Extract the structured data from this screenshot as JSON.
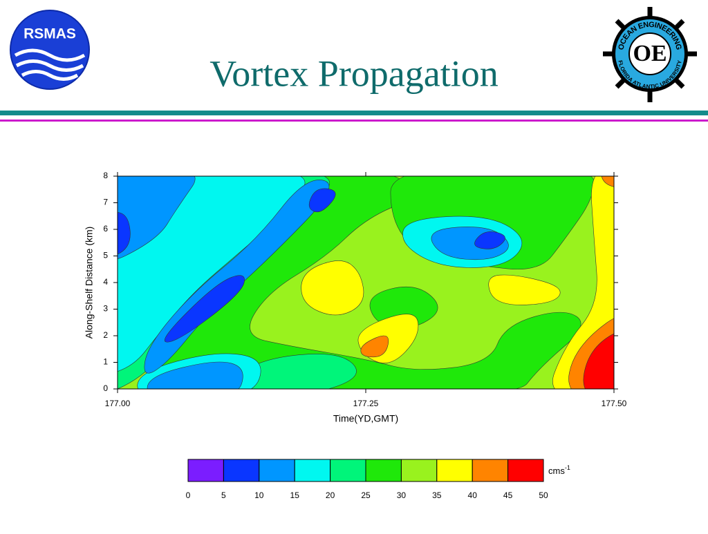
{
  "header": {
    "title": "Vortex Propagation",
    "left_logo": "RSMAS",
    "right_logo": {
      "top_text": "OCEAN ENGINEERING",
      "bottom_text": "FLORIDA ATLANTIC UNIVERSITY",
      "monogram": "OE"
    }
  },
  "chart_data": {
    "type": "contour",
    "xlabel": "Time(YD,GMT)",
    "ylabel": "Along-Shelf Distance (km)",
    "xlim": [
      177,
      177.5
    ],
    "xticks": [
      {
        "value": 177,
        "label": "177.00"
      },
      {
        "value": 177.25,
        "label": "177.25"
      },
      {
        "value": 177.5,
        "label": "177.50"
      }
    ],
    "ylim": [
      0,
      8
    ],
    "yticks": [
      0,
      1,
      2,
      3,
      4,
      5,
      6,
      7,
      8
    ],
    "colorbar": {
      "levels": [
        0,
        5,
        10,
        15,
        20,
        25,
        30,
        35,
        40,
        45,
        50
      ],
      "colors": [
        "#7b1dff",
        "#0a36ff",
        "#0096ff",
        "#00f7f0",
        "#00f57a",
        "#1fe80a",
        "#99f21e",
        "#ffff00",
        "#ff8400",
        "#ff0000"
      ],
      "unit": "cms",
      "unit_exponent": "-1"
    }
  }
}
